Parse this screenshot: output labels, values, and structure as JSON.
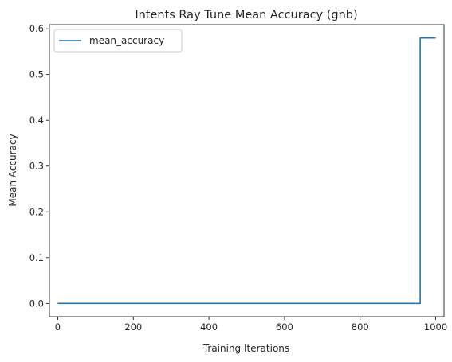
{
  "chart_data": {
    "type": "line",
    "title": "Intents Ray Tune Mean Accuracy (gnb)",
    "xlabel": "Training Iterations",
    "ylabel": "Mean Accuracy",
    "xlim": [
      -22,
      1022
    ],
    "ylim": [
      -0.029,
      0.609
    ],
    "xticks": [
      0,
      200,
      400,
      600,
      800,
      1000
    ],
    "yticks": [
      0.0,
      0.1,
      0.2,
      0.3,
      0.4,
      0.5,
      0.6
    ],
    "xtick_labels": [
      "0",
      "200",
      "400",
      "600",
      "800",
      "1000"
    ],
    "ytick_labels": [
      "0.0",
      "0.1",
      "0.2",
      "0.3",
      "0.4",
      "0.5",
      "0.6"
    ],
    "grid": false,
    "legend_position": "top-left",
    "series": [
      {
        "name": "mean_accuracy",
        "color": "#1f77b4",
        "x": [
          0,
          959,
          959,
          1000
        ],
        "y": [
          0.0,
          0.0,
          0.58,
          0.58
        ]
      }
    ]
  }
}
